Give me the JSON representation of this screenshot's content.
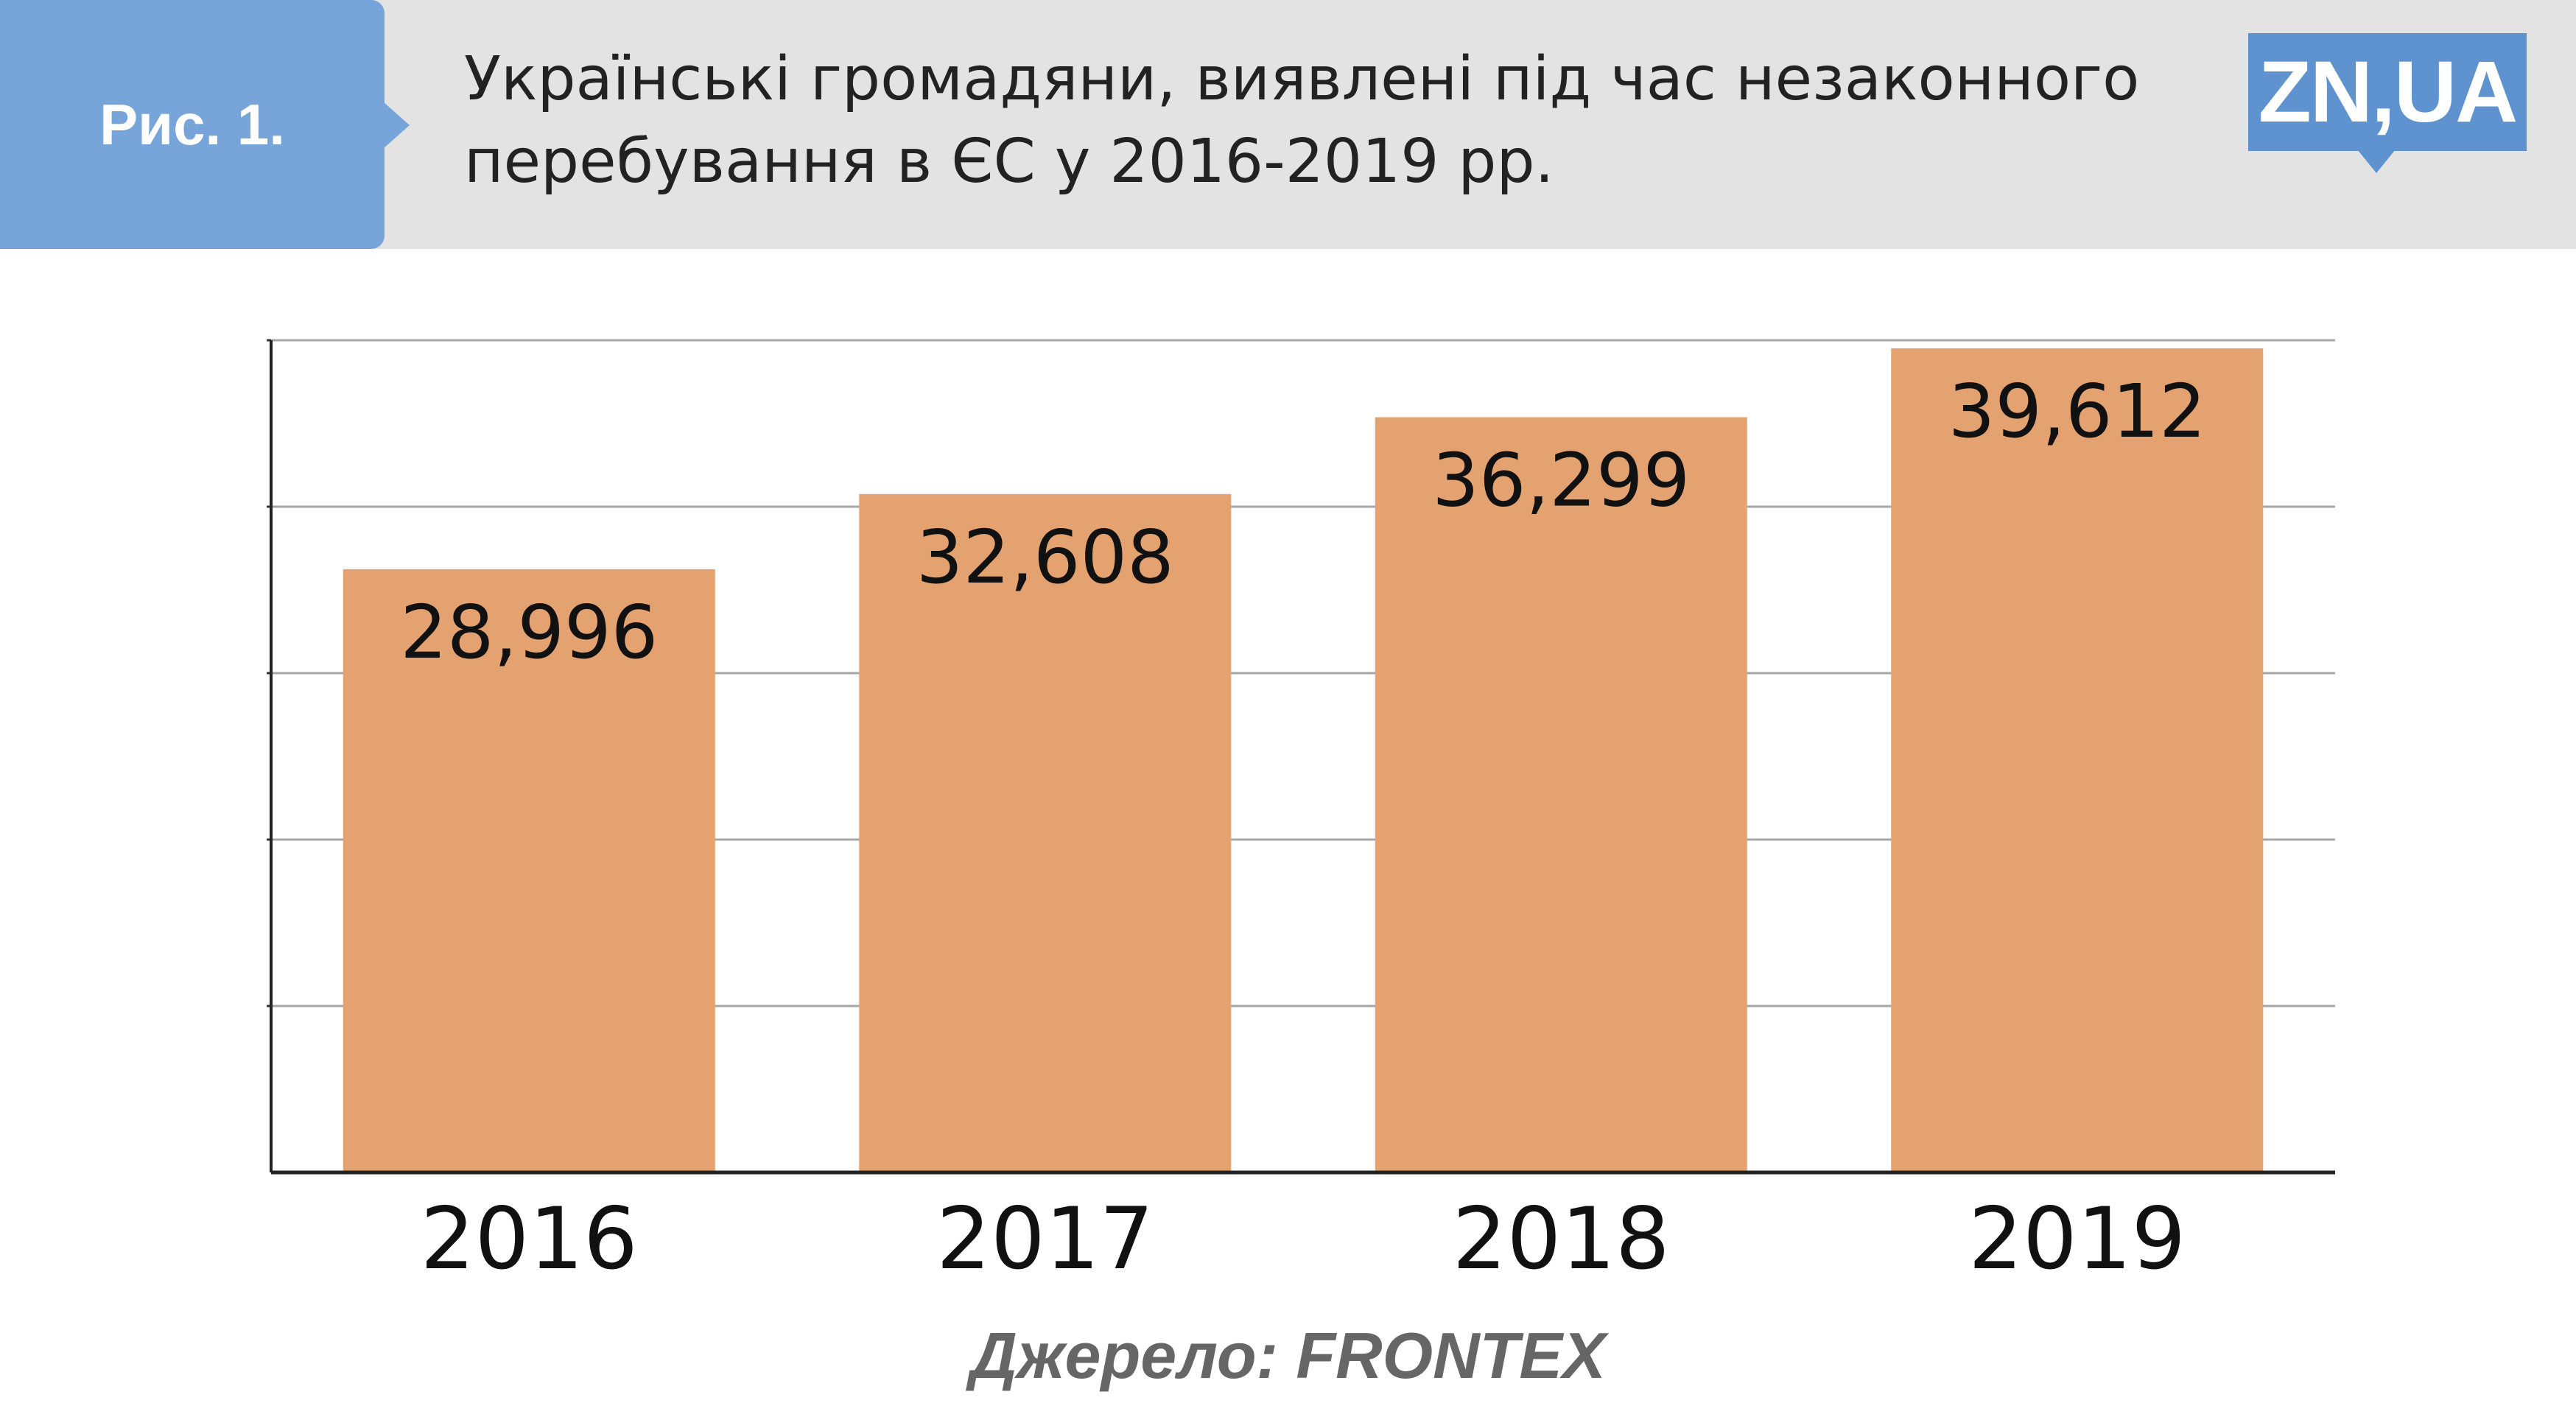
{
  "header": {
    "figure_label": "Рис. 1.",
    "title_line1": "Українські громадяни, виявлені під час незаконного",
    "title_line2": "перебування в ЄС у 2016-2019 рр.",
    "logo_text": "ZN,UA"
  },
  "colors": {
    "bar": "#e3a26f",
    "header_band": "#e3e3e3",
    "label_box": "#77a5d9",
    "logo": "#5e93cf",
    "grid": "#a6a6a6"
  },
  "chart_data": {
    "type": "bar",
    "title": "Українські громадяни, виявлені під час незаконного перебування в ЄС у 2016-2019 рр.",
    "categories": [
      "2016",
      "2017",
      "2018",
      "2019"
    ],
    "values": [
      28996,
      32608,
      36299,
      39612
    ],
    "value_labels": [
      "28,996",
      "32,608",
      "36,299",
      "39,612"
    ],
    "xlabel": "",
    "ylabel": "",
    "ylim": [
      0,
      40000
    ],
    "grid": true,
    "legend": "none"
  },
  "source": "Джерело: FRONTEX"
}
